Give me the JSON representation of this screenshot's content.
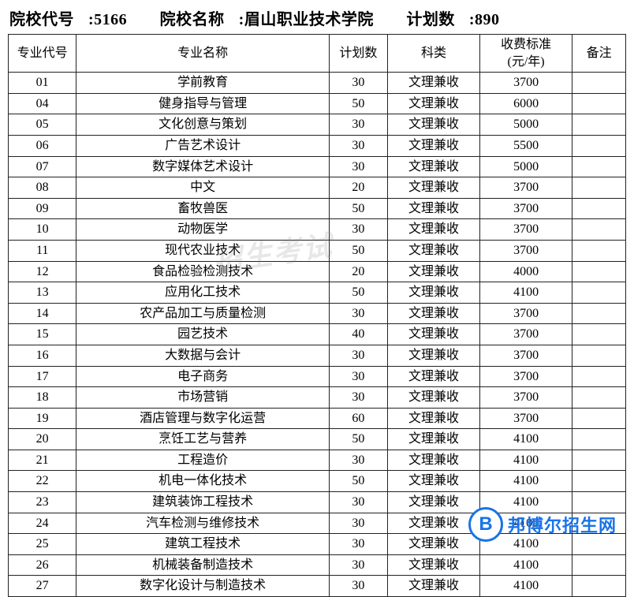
{
  "header": {
    "school_code_label": "院校代号",
    "school_code": "5166",
    "school_name_label": "院校名称",
    "school_name": "眉山职业技术学院",
    "plan_total_label": "计划数",
    "plan_total": "890"
  },
  "table": {
    "columns": {
      "code": "专业代号",
      "name": "专业名称",
      "plan": "计划数",
      "category": "科类",
      "fee": "收费标准\n(元/年)",
      "note": "备注"
    },
    "rows": [
      {
        "code": "01",
        "name": "学前教育",
        "plan": "30",
        "category": "文理兼收",
        "fee": "3700",
        "note": ""
      },
      {
        "code": "04",
        "name": "健身指导与管理",
        "plan": "50",
        "category": "文理兼收",
        "fee": "6000",
        "note": ""
      },
      {
        "code": "05",
        "name": "文化创意与策划",
        "plan": "30",
        "category": "文理兼收",
        "fee": "5000",
        "note": ""
      },
      {
        "code": "06",
        "name": "广告艺术设计",
        "plan": "30",
        "category": "文理兼收",
        "fee": "5500",
        "note": ""
      },
      {
        "code": "07",
        "name": "数字媒体艺术设计",
        "plan": "30",
        "category": "文理兼收",
        "fee": "5000",
        "note": ""
      },
      {
        "code": "08",
        "name": "中文",
        "plan": "20",
        "category": "文理兼收",
        "fee": "3700",
        "note": ""
      },
      {
        "code": "09",
        "name": "畜牧兽医",
        "plan": "50",
        "category": "文理兼收",
        "fee": "3700",
        "note": ""
      },
      {
        "code": "10",
        "name": "动物医学",
        "plan": "30",
        "category": "文理兼收",
        "fee": "3700",
        "note": ""
      },
      {
        "code": "11",
        "name": "现代农业技术",
        "plan": "50",
        "category": "文理兼收",
        "fee": "3700",
        "note": ""
      },
      {
        "code": "12",
        "name": "食品检验检测技术",
        "plan": "20",
        "category": "文理兼收",
        "fee": "4000",
        "note": ""
      },
      {
        "code": "13",
        "name": "应用化工技术",
        "plan": "50",
        "category": "文理兼收",
        "fee": "4100",
        "note": ""
      },
      {
        "code": "14",
        "name": "农产品加工与质量检测",
        "plan": "30",
        "category": "文理兼收",
        "fee": "3700",
        "note": ""
      },
      {
        "code": "15",
        "name": "园艺技术",
        "plan": "40",
        "category": "文理兼收",
        "fee": "3700",
        "note": ""
      },
      {
        "code": "16",
        "name": "大数据与会计",
        "plan": "30",
        "category": "文理兼收",
        "fee": "3700",
        "note": ""
      },
      {
        "code": "17",
        "name": "电子商务",
        "plan": "30",
        "category": "文理兼收",
        "fee": "3700",
        "note": ""
      },
      {
        "code": "18",
        "name": "市场营销",
        "plan": "30",
        "category": "文理兼收",
        "fee": "3700",
        "note": ""
      },
      {
        "code": "19",
        "name": "酒店管理与数字化运营",
        "plan": "60",
        "category": "文理兼收",
        "fee": "3700",
        "note": ""
      },
      {
        "code": "20",
        "name": "烹饪工艺与营养",
        "plan": "50",
        "category": "文理兼收",
        "fee": "4100",
        "note": ""
      },
      {
        "code": "21",
        "name": "工程造价",
        "plan": "30",
        "category": "文理兼收",
        "fee": "4100",
        "note": ""
      },
      {
        "code": "22",
        "name": "机电一体化技术",
        "plan": "50",
        "category": "文理兼收",
        "fee": "4100",
        "note": ""
      },
      {
        "code": "23",
        "name": "建筑装饰工程技术",
        "plan": "30",
        "category": "文理兼收",
        "fee": "4100",
        "note": ""
      },
      {
        "code": "24",
        "name": "汽车检测与维修技术",
        "plan": "30",
        "category": "文理兼收",
        "fee": "4100",
        "note": ""
      },
      {
        "code": "25",
        "name": "建筑工程技术",
        "plan": "30",
        "category": "文理兼收",
        "fee": "4100",
        "note": ""
      },
      {
        "code": "26",
        "name": "机械装备制造技术",
        "plan": "30",
        "category": "文理兼收",
        "fee": "4100",
        "note": ""
      },
      {
        "code": "27",
        "name": "数字化设计与制造技术",
        "plan": "30",
        "category": "文理兼收",
        "fee": "4100",
        "note": ""
      }
    ]
  },
  "watermark": {
    "text": "招生考试"
  },
  "logo": {
    "letter": "B",
    "text": "邦博尔招生网"
  },
  "style": {
    "header_fontsize": 20,
    "table_fontsize": 16,
    "border_color": "#222222",
    "background_color": "#ffffff",
    "logo_color": "#1a73e8",
    "watermark_color": "rgba(120,120,120,0.18)"
  }
}
